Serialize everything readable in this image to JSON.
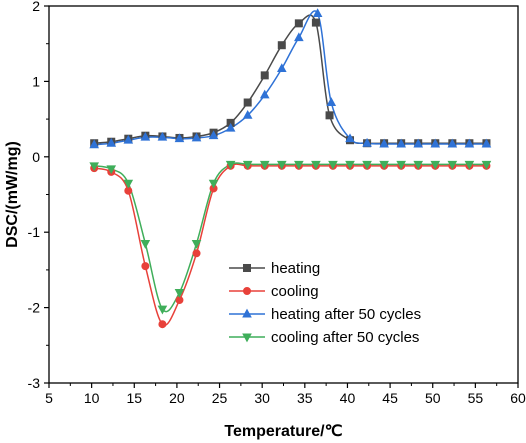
{
  "chart_data": {
    "type": "line",
    "xlabel": "Temperature/℃",
    "ylabel": "DSC/(mW/mg)",
    "xlim": [
      5,
      60
    ],
    "ylim": [
      -3,
      2
    ],
    "x_ticks": [
      5,
      10,
      15,
      20,
      25,
      30,
      35,
      40,
      45,
      50,
      55,
      60
    ],
    "y_ticks": [
      -3,
      -2,
      -1,
      0,
      1,
      2
    ],
    "grid": false,
    "legend_position": "bottom-center",
    "series": [
      {
        "name": "heating",
        "color": "#4a4a4a",
        "marker": "square",
        "x": [
          10.3,
          12.3,
          14.3,
          16.3,
          18.3,
          20.3,
          22.3,
          24.3,
          26.3,
          28.3,
          30.3,
          32.3,
          34.3,
          36.3,
          37.9,
          40.3,
          42.3,
          44.3,
          46.3,
          48.3,
          50.3,
          52.3,
          54.3,
          56.3
        ],
        "y": [
          0.18,
          0.2,
          0.24,
          0.28,
          0.27,
          0.25,
          0.27,
          0.32,
          0.45,
          0.72,
          1.08,
          1.48,
          1.77,
          1.78,
          0.55,
          0.22,
          0.18,
          0.18,
          0.18,
          0.18,
          0.18,
          0.18,
          0.18,
          0.18
        ]
      },
      {
        "name": "cooling",
        "color": "#e8413a",
        "marker": "circle",
        "x": [
          10.3,
          12.3,
          14.3,
          16.3,
          18.3,
          20.3,
          22.3,
          24.3,
          26.3,
          28.3,
          30.3,
          32.3,
          34.3,
          36.3,
          38.3,
          40.3,
          42.3,
          44.3,
          46.3,
          48.3,
          50.3,
          52.3,
          54.3,
          56.3
        ],
        "y": [
          -0.15,
          -0.2,
          -0.45,
          -1.45,
          -2.22,
          -1.9,
          -1.28,
          -0.42,
          -0.12,
          -0.12,
          -0.12,
          -0.12,
          -0.12,
          -0.12,
          -0.12,
          -0.12,
          -0.12,
          -0.12,
          -0.12,
          -0.12,
          -0.12,
          -0.12,
          -0.12,
          -0.12
        ]
      },
      {
        "name": "heating after 50 cycles",
        "color": "#2f72d6",
        "marker": "triangle-up",
        "x": [
          10.3,
          12.3,
          14.3,
          16.3,
          18.3,
          20.3,
          22.3,
          24.3,
          26.3,
          28.3,
          30.3,
          32.3,
          34.3,
          36.5,
          38.1,
          40.3,
          42.3,
          44.3,
          46.3,
          48.3,
          50.3,
          52.3,
          54.3,
          56.3
        ],
        "y": [
          0.16,
          0.18,
          0.22,
          0.26,
          0.26,
          0.24,
          0.25,
          0.28,
          0.38,
          0.55,
          0.82,
          1.17,
          1.58,
          1.9,
          0.72,
          0.24,
          0.18,
          0.17,
          0.17,
          0.17,
          0.17,
          0.17,
          0.17,
          0.17
        ]
      },
      {
        "name": "cooling after 50 cycles",
        "color": "#3fae5a",
        "marker": "triangle-down",
        "x": [
          10.3,
          12.3,
          14.3,
          16.3,
          18.3,
          20.3,
          22.3,
          24.3,
          26.3,
          28.3,
          30.3,
          32.3,
          34.3,
          36.3,
          38.3,
          40.3,
          42.3,
          44.3,
          46.3,
          48.3,
          50.3,
          52.3,
          54.3,
          56.3
        ],
        "y": [
          -0.12,
          -0.16,
          -0.35,
          -1.15,
          -2.02,
          -1.8,
          -1.15,
          -0.35,
          -0.1,
          -0.1,
          -0.1,
          -0.1,
          -0.1,
          -0.1,
          -0.1,
          -0.1,
          -0.1,
          -0.1,
          -0.1,
          -0.1,
          -0.1,
          -0.1,
          -0.1,
          -0.1
        ]
      }
    ]
  }
}
